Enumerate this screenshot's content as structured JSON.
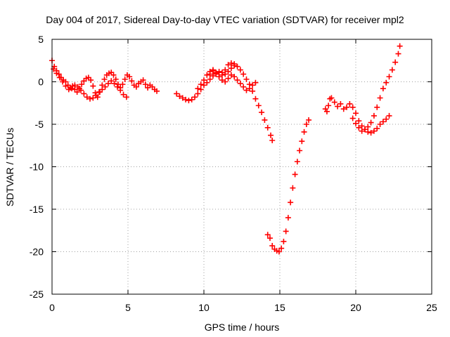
{
  "chart_data": {
    "type": "scatter",
    "title": "Day 004 of 2017, Sidereal Day-to-day VTEC variation (SDTVAR) for receiver mpl2",
    "xlabel": "GPS time / hours",
    "ylabel": "SDTVAR / TECUs",
    "xlim": [
      0,
      25
    ],
    "ylim": [
      -25,
      5
    ],
    "xticks": [
      0,
      5,
      10,
      15,
      20,
      25
    ],
    "yticks": [
      -25,
      -20,
      -15,
      -10,
      -5,
      0,
      5
    ],
    "grid": true,
    "marker": "plus",
    "series": [
      {
        "name": "SDTVAR",
        "color": "#ff0000",
        "segments": [
          {
            "x": [
              0.0,
              0.15,
              0.3,
              0.45,
              0.6,
              0.75,
              0.9,
              1.05,
              1.2,
              1.35,
              1.5,
              1.65,
              1.8,
              1.95,
              2.1,
              2.25,
              2.4,
              2.55,
              2.7,
              2.85,
              3.0,
              3.15,
              3.3,
              3.45,
              3.6,
              3.75,
              3.9,
              4.05,
              4.2,
              4.35,
              4.5,
              4.65,
              4.8,
              4.95,
              5.1,
              5.25,
              5.4,
              5.55,
              5.7,
              5.85,
              6.0,
              6.15,
              6.3,
              6.45,
              6.6,
              6.75,
              6.9
            ],
            "y": [
              2.5,
              1.8,
              1.3,
              0.9,
              0.5,
              0.2,
              0.0,
              -0.4,
              -0.7,
              -0.5,
              -0.9,
              -1.2,
              -0.8,
              -0.3,
              0.1,
              0.4,
              0.5,
              0.2,
              -0.5,
              -1.3,
              -1.8,
              -1.2,
              -0.4,
              0.3,
              0.8,
              1.0,
              1.1,
              0.8,
              0.3,
              -0.3,
              -0.7,
              -0.3,
              0.3,
              0.8,
              0.6,
              0.1,
              -0.4,
              -0.6,
              -0.2,
              0.0,
              0.2,
              -0.3,
              -0.7,
              -0.4,
              -0.6,
              -0.9,
              -1.1
            ]
          },
          {
            "x": [
              0.1,
              0.3,
              0.5,
              0.7,
              0.9,
              1.1,
              1.3,
              1.5,
              1.7,
              1.9,
              2.1,
              2.3,
              2.5,
              2.7,
              2.9,
              3.1,
              3.3,
              3.5,
              3.7,
              3.9,
              4.1,
              4.3,
              4.5,
              4.7,
              4.9
            ],
            "y": [
              1.5,
              1.0,
              0.5,
              0.0,
              -0.5,
              -0.9,
              -0.8,
              -0.4,
              -0.6,
              -1.0,
              -1.4,
              -1.8,
              -2.0,
              -1.9,
              -1.6,
              -1.2,
              -0.9,
              -0.6,
              -0.2,
              0.1,
              -0.2,
              -0.6,
              -1.0,
              -1.5,
              -1.8
            ]
          },
          {
            "x": [
              8.2,
              8.4,
              8.6,
              8.8,
              9.0,
              9.2,
              9.4,
              9.6,
              9.8,
              10.0,
              10.2,
              10.4,
              10.6,
              10.8,
              11.0,
              11.2,
              11.4,
              11.6,
              11.8,
              12.0
            ],
            "y": [
              -1.4,
              -1.7,
              -1.9,
              -2.1,
              -2.2,
              -2.1,
              -1.8,
              -1.4,
              -0.9,
              -0.4,
              -0.1,
              0.3,
              0.7,
              1.0,
              1.2,
              1.1,
              0.9,
              1.2,
              1.6,
              1.9
            ]
          },
          {
            "x": [
              9.6,
              9.8,
              10.0,
              10.2,
              10.4,
              10.6,
              10.8,
              11.0,
              11.2,
              11.4,
              11.6,
              11.8,
              12.0,
              12.2,
              12.4,
              12.6,
              12.8,
              13.0,
              13.2,
              13.4,
              13.6,
              13.8,
              14.0,
              14.2,
              14.4,
              14.5
            ],
            "y": [
              -0.8,
              -0.3,
              0.2,
              0.8,
              1.2,
              1.3,
              0.9,
              0.6,
              0.8,
              1.4,
              2.0,
              2.2,
              2.1,
              1.8,
              1.4,
              0.9,
              0.3,
              -0.3,
              -1.1,
              -2.0,
              -2.8,
              -3.6,
              -4.5,
              -5.4,
              -6.3,
              -6.9
            ]
          },
          {
            "x": [
              10.4,
              10.6,
              10.8,
              11.0,
              11.2,
              11.4,
              11.6,
              11.8,
              12.0,
              12.2,
              12.4,
              12.6,
              12.8,
              13.0,
              13.2,
              13.4
            ],
            "y": [
              0.9,
              1.4,
              1.1,
              0.6,
              0.2,
              0.0,
              0.4,
              0.8,
              0.6,
              0.2,
              -0.2,
              -0.6,
              -1.0,
              -0.8,
              -0.4,
              -0.1
            ]
          },
          {
            "x": [
              14.2,
              14.35,
              14.5,
              14.65,
              14.8,
              14.95,
              15.1,
              15.25,
              15.4,
              15.55,
              15.7,
              15.85,
              16.0,
              16.15,
              16.3,
              16.45,
              16.6,
              16.75,
              16.9
            ],
            "y": [
              -18.0,
              -18.4,
              -19.3,
              -19.7,
              -19.9,
              -20.0,
              -19.6,
              -18.8,
              -17.6,
              -16.0,
              -14.2,
              -12.5,
              -10.9,
              -9.4,
              -8.1,
              -7.0,
              -5.9,
              -5.0,
              -4.5
            ]
          },
          {
            "x": [
              18.0,
              18.1,
              18.2,
              18.3,
              18.4,
              18.6,
              18.8,
              19.0,
              19.2,
              19.4,
              19.6,
              19.8,
              20.0,
              20.2,
              20.4,
              20.6,
              20.8,
              21.0,
              21.2,
              21.4,
              21.6,
              21.8,
              22.0,
              22.2
            ],
            "y": [
              -3.2,
              -3.5,
              -2.8,
              -2.0,
              -1.9,
              -2.4,
              -2.9,
              -2.6,
              -3.2,
              -3.0,
              -2.6,
              -3.0,
              -3.7,
              -4.6,
              -5.2,
              -5.6,
              -5.9,
              -6.0,
              -5.8,
              -5.5,
              -5.0,
              -4.7,
              -4.4,
              -4.0
            ]
          },
          {
            "x": [
              19.8,
              20.0,
              20.2,
              20.4,
              20.6,
              20.8,
              21.0,
              21.2,
              21.4,
              21.6,
              21.8,
              22.0,
              22.2,
              22.4,
              22.6,
              22.8,
              22.9
            ],
            "y": [
              -4.3,
              -4.9,
              -5.4,
              -5.8,
              -5.6,
              -5.3,
              -4.8,
              -4.0,
              -3.0,
              -1.9,
              -0.8,
              -0.1,
              0.6,
              1.4,
              2.3,
              3.3,
              4.2
            ]
          }
        ]
      }
    ]
  }
}
